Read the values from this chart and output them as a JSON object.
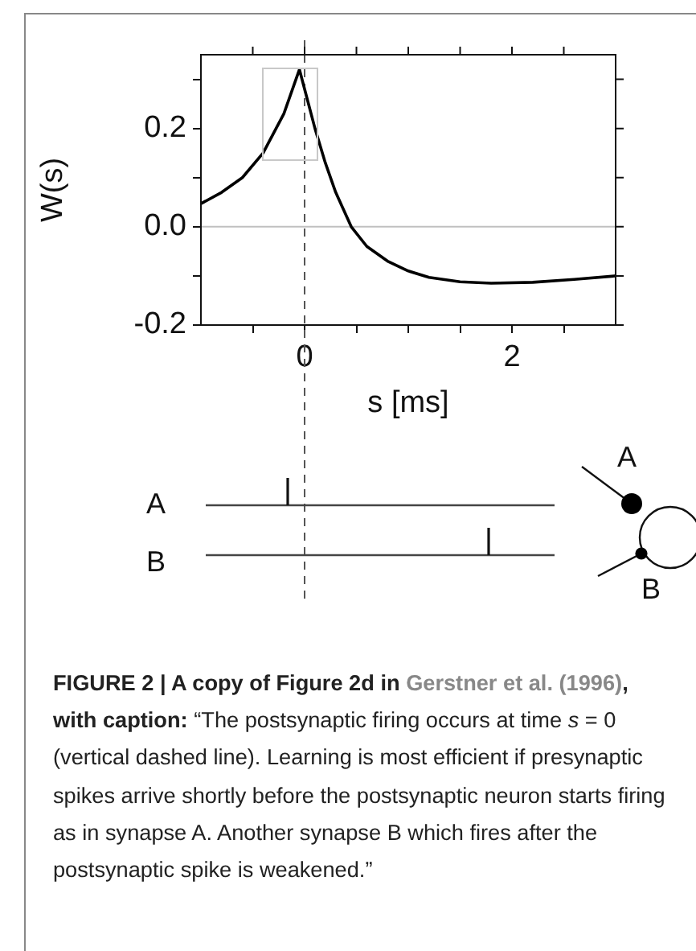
{
  "chart_data": {
    "type": "line",
    "xlabel": "s [ms]",
    "ylabel": "W(s)",
    "xlim": [
      -1,
      3
    ],
    "xticks": [
      {
        "value": -0.5,
        "label": null
      },
      0,
      {
        "value": 0.5,
        "label": null
      },
      {
        "value": 1,
        "label": null
      },
      {
        "value": 1.5,
        "label": null
      },
      2,
      {
        "value": 2.5,
        "label": null
      }
    ],
    "ylim": [
      -0.2,
      0.35
    ],
    "yticks": [
      {
        "value": -0.2,
        "label": "-0.2"
      },
      {
        "value": -0.1,
        "label": null
      },
      {
        "value": 0,
        "label": "0.0"
      },
      {
        "value": 0.1,
        "label": null
      },
      {
        "value": 0.2,
        "label": "0.2"
      },
      {
        "value": 0.3,
        "label": null
      }
    ],
    "series": [
      {
        "color": "#000000",
        "x": [
          -1,
          -0.8,
          -0.6,
          -0.4,
          -0.2,
          -0.05,
          0,
          0.1,
          0.2,
          0.3,
          0.45,
          0.6,
          0.8,
          1.0,
          1.2,
          1.5,
          1.8,
          2.2,
          2.6,
          3
        ],
        "values": [
          0.047,
          0.07,
          0.1,
          0.15,
          0.23,
          0.32,
          0.28,
          0.2,
          0.13,
          0.07,
          0,
          -0.04,
          -0.07,
          -0.09,
          -0.103,
          -0.112,
          -0.115,
          -0.113,
          -0.107,
          -0.1
        ]
      }
    ],
    "ref_lines": [
      {
        "axis": "y",
        "value": 0,
        "color": "#c0c0c0"
      },
      {
        "axis": "x",
        "value": 0,
        "color": "#555555",
        "line_style": "dashed"
      }
    ],
    "marker": "none",
    "grid": false,
    "legend": false,
    "annotations": [
      "A",
      "B",
      "A",
      "B",
      "FIGURE 2 | A copy of Figure 2d in ",
      "Gerstner et al. (1996)",
      ", with caption: ",
      "“The postsynaptic firing occurs at time ",
      "s",
      " = 0 (vertical dashed line). Learning is most efficient if presynaptic spikes arrive shortly before the postsynaptic neuron starts firing as in synapse A. Another synapse B which fires after the postsynaptic spike is weakened.”"
    ]
  }
}
